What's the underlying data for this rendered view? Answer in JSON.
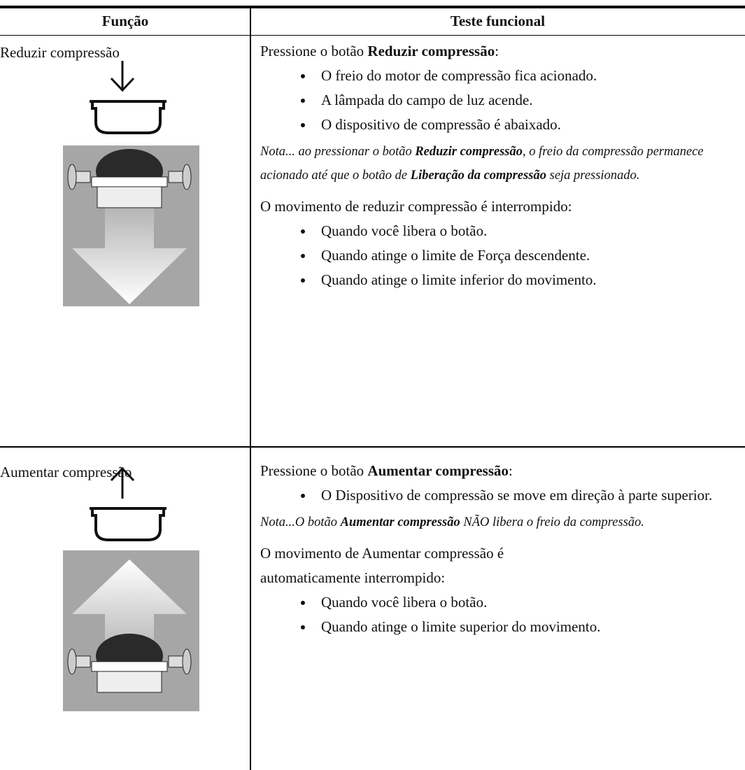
{
  "header": {
    "function": "Função",
    "test": "Teste funcional"
  },
  "rows": [
    {
      "function": "Reduzir compressão",
      "intro": [
        {
          "text": "Pressione o botão "
        },
        {
          "text": "Reduzir compressão",
          "bold": true
        },
        {
          "text": ":"
        }
      ],
      "bullets": [
        "O freio do motor de compressão fica acionado.",
        "A lâmpada do campo de luz acende.",
        "O dispositivo de compressão é abaixado."
      ],
      "note": [
        {
          "text": "Nota... ao pressionar o botão "
        },
        {
          "text": "Reduzir compressão",
          "bold": true
        },
        {
          "text": ", o freio da compressão permanece acionado até que o botão de "
        },
        {
          "text": "Liberação da compressão",
          "bold": true
        },
        {
          "text": " seja pressionado."
        }
      ],
      "stop_intro": "O movimento de reduzir compressão é interrompido:",
      "stop_bullets": [
        "Quando você libera o botão.",
        "Quando atinge o limite de Força descendente.",
        "Quando atinge o limite inferior do movimento."
      ]
    },
    {
      "function": "Aumentar compressão",
      "intro": [
        {
          "text": "Pressione o botão "
        },
        {
          "text": "Aumentar compressão",
          "bold": true
        },
        {
          "text": ":"
        }
      ],
      "bullets": [
        "O Dispositivo de compressão se move em direção à parte superior."
      ],
      "note": [
        {
          "text": "Nota...O botão "
        },
        {
          "text": "Aumentar compressão",
          "bold": true
        },
        {
          "text": " NÃO libera o freio da compressão."
        }
      ],
      "stop_intro": "O movimento de Aumentar compressão é automaticamente interrompido:",
      "stop_bullets": [
        "Quando você libera o botão.",
        "Quando atinge o limite superior do movimento."
      ]
    }
  ]
}
